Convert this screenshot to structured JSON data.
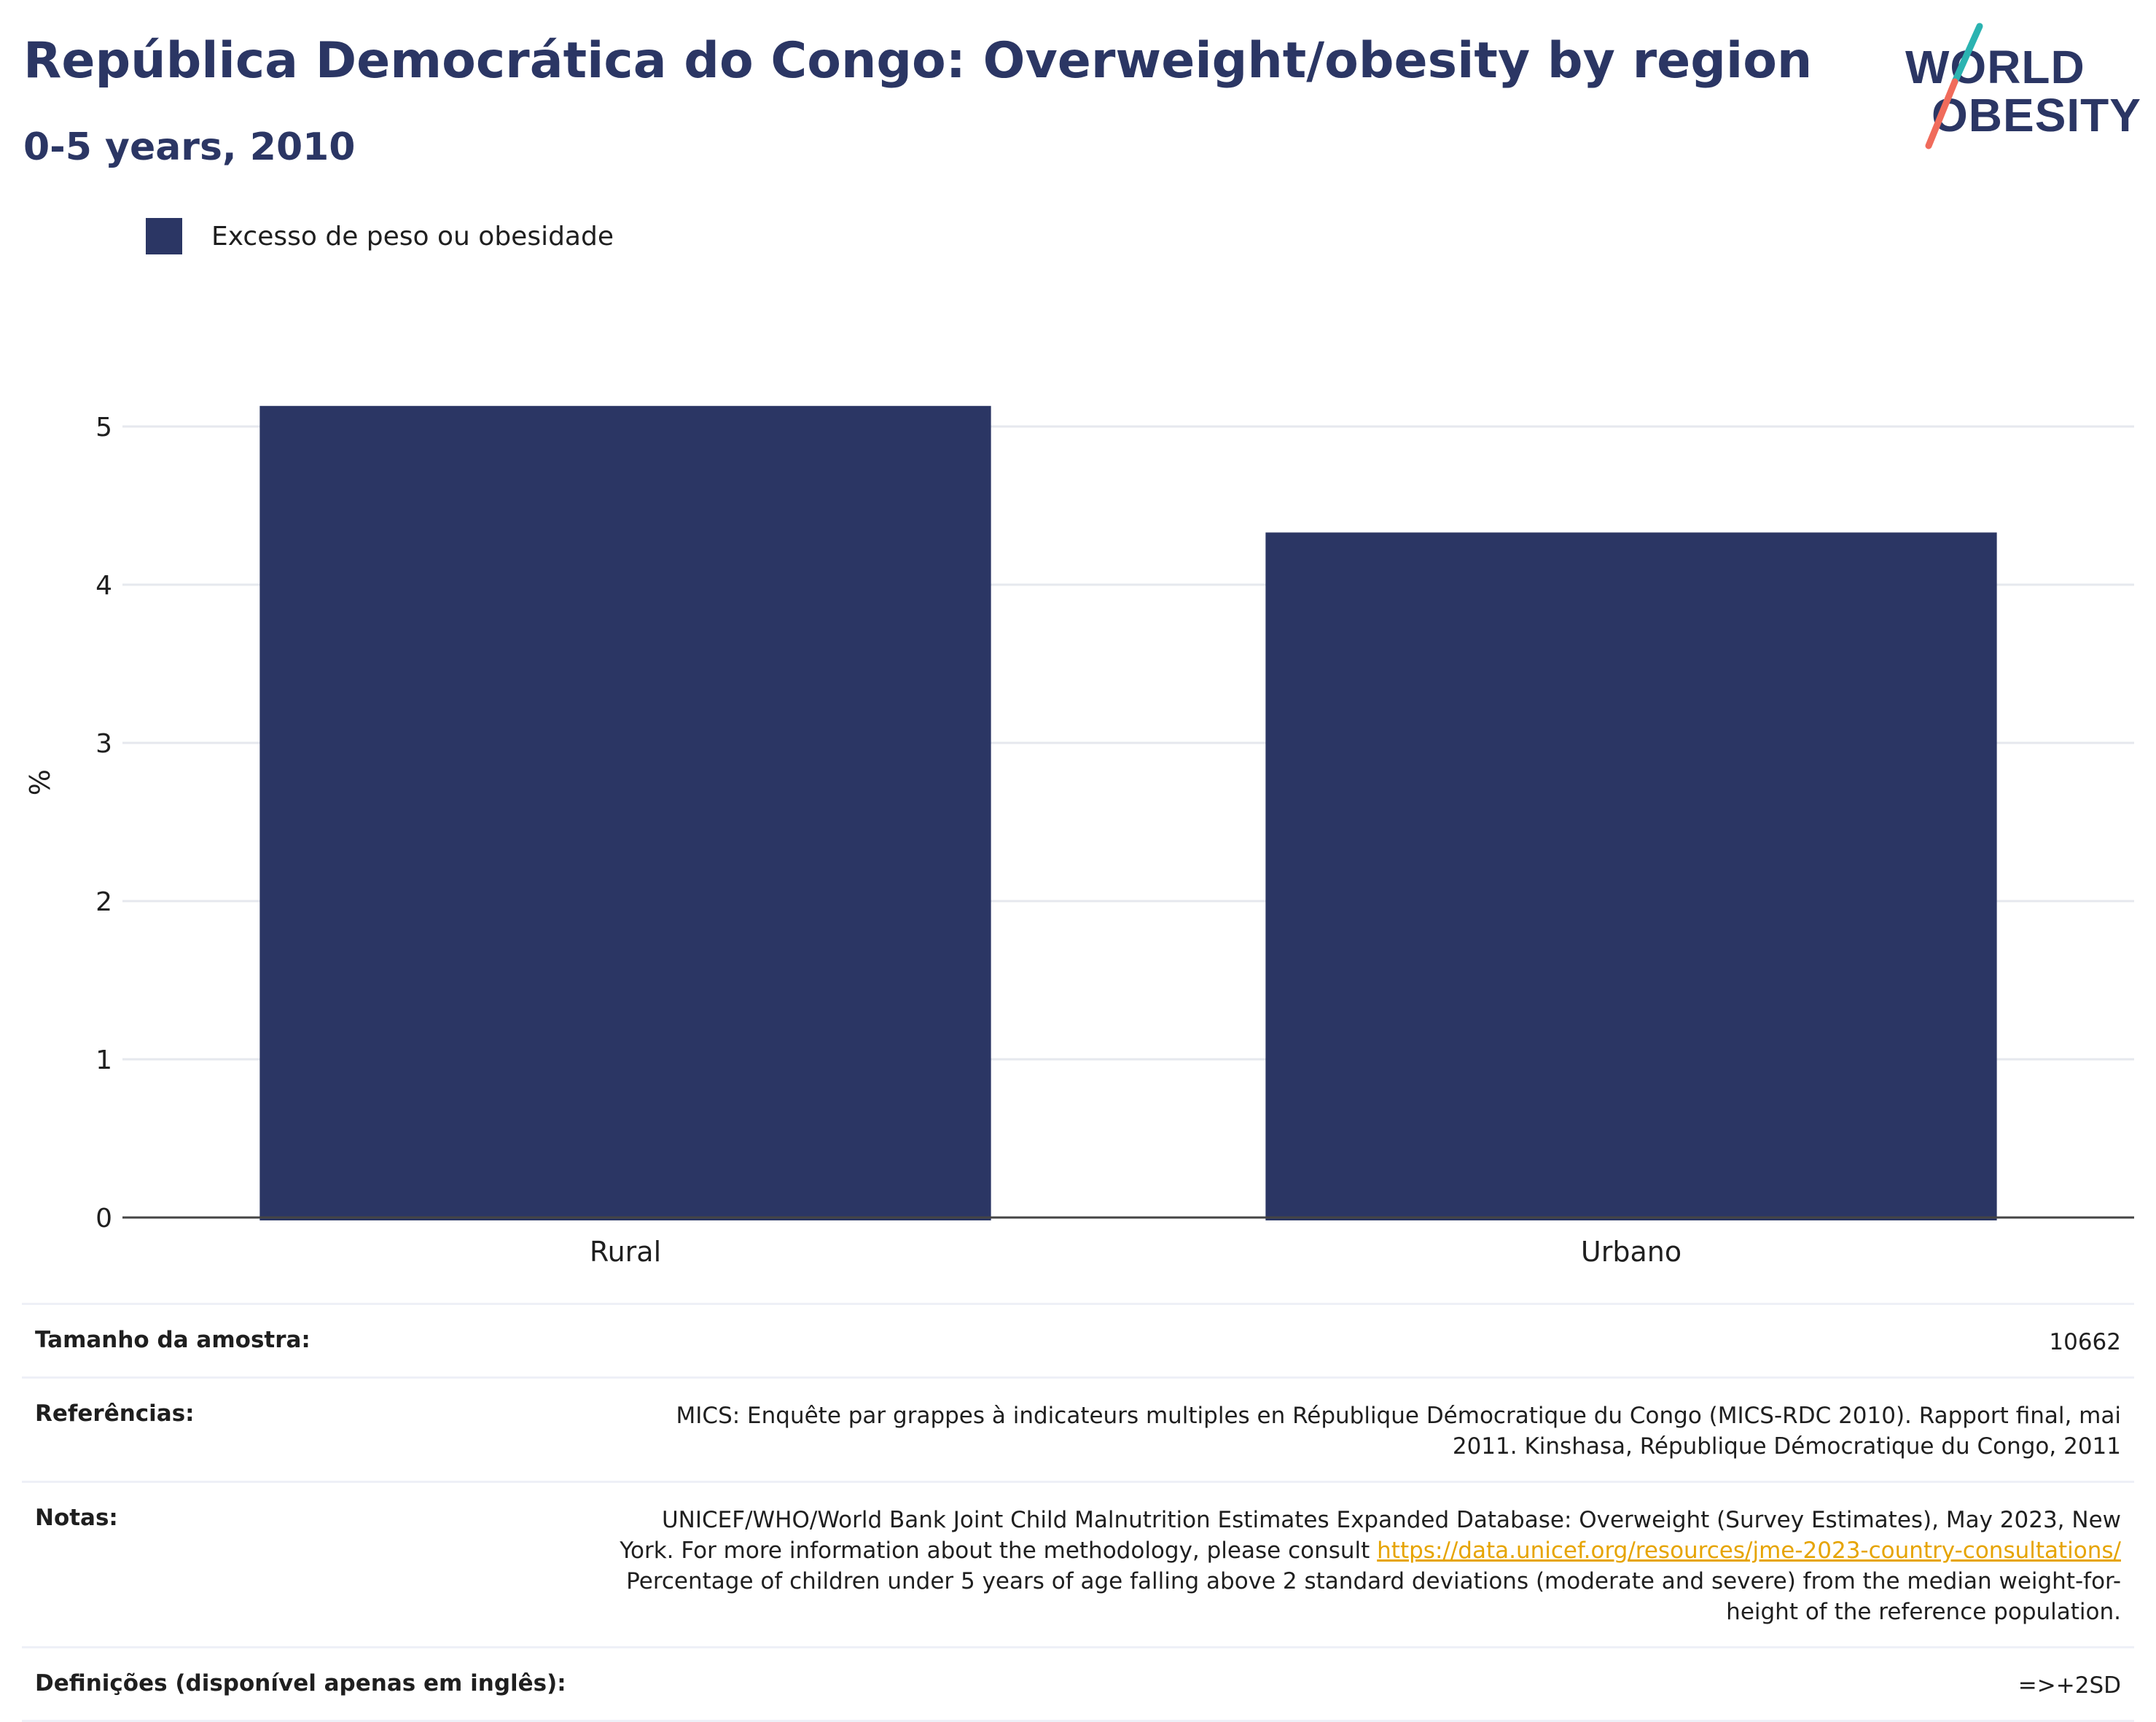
{
  "title": "República Democrática do Congo: Overweight/obesity by region",
  "subtitle": "0-5 years, 2010",
  "logo": {
    "line1": "WORLD",
    "line2": "OBESITY"
  },
  "legend": {
    "label": "Excesso de peso ou obesidade",
    "color": "#2b3664"
  },
  "chart_data": {
    "type": "bar",
    "categories": [
      "Rural",
      "Urbano"
    ],
    "series": [
      {
        "name": "Excesso de peso ou obesidade",
        "values": [
          5.13,
          4.33
        ],
        "color": "#2b3664"
      }
    ],
    "ylabel": "%",
    "xlabel": "",
    "ylim": [
      0,
      5.5
    ],
    "yticks": [
      0,
      1,
      2,
      3,
      4,
      5
    ],
    "grid": true,
    "legend_position": "top-left"
  },
  "info": {
    "sample_size": {
      "label": "Tamanho da amostra:",
      "value": "10662"
    },
    "references": {
      "label": "Referências:",
      "value": "MICS: Enquête par grappes à indicateurs multiples en République Démocratique du Congo (MICS-RDC 2010). Rapport final, mai 2011. Kinshasa, République Démocratique du Congo, 2011"
    },
    "notes": {
      "label": "Notas:",
      "text_before": "UNICEF/WHO/World Bank Joint Child Malnutrition Estimates Expanded Database: Overweight (Survey Estimates), May 2023, New York. For more information about the methodology, please consult ",
      "link": "https://data.unicef.org/resources/jme-2023-country-consultations/",
      "text_after": " Percentage of children under 5 years of age falling above 2 standard deviations (moderate and severe) from the median weight-for-height of the reference population."
    },
    "definitions": {
      "label": "Definições (disponível apenas em inglês):",
      "value": "=>+2SD"
    }
  }
}
